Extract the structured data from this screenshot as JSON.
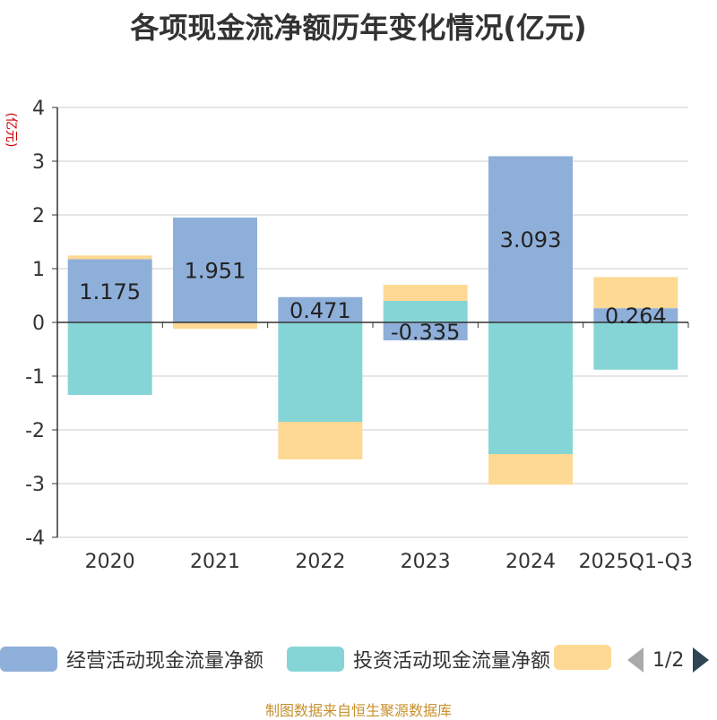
{
  "title": "各项现金流净额历年变化情况(亿元)",
  "footer": "制图数据来自恒生聚源数据库",
  "legend_page": "1/2",
  "chart_data": {
    "type": "bar",
    "stacked": true,
    "ylabel": "(亿元)",
    "ylim": [
      -4,
      4
    ],
    "yticks": [
      4,
      3,
      2,
      1,
      0,
      -1,
      -2,
      -3,
      -4
    ],
    "categories": [
      "2020",
      "2021",
      "2022",
      "2023",
      "2024",
      "2025Q1-Q3"
    ],
    "series": [
      {
        "name": "经营活动现金流量净额",
        "color": "#8eafd9",
        "values": [
          1.175,
          1.951,
          0.471,
          -0.335,
          3.093,
          0.264
        ]
      },
      {
        "name": "投资活动现金流量净额",
        "color": "#86d5d6",
        "values": [
          -1.35,
          0,
          -1.85,
          0.4,
          -2.45,
          -0.88
        ]
      },
      {
        "name": "",
        "color": "#fed994",
        "values": [
          0.07,
          -0.12,
          -0.7,
          0.3,
          -0.57,
          0.58
        ]
      }
    ],
    "data_labels": [
      "1.175",
      "1.951",
      "0.471",
      "-0.335",
      "3.093",
      "0.264"
    ],
    "grid": true
  }
}
